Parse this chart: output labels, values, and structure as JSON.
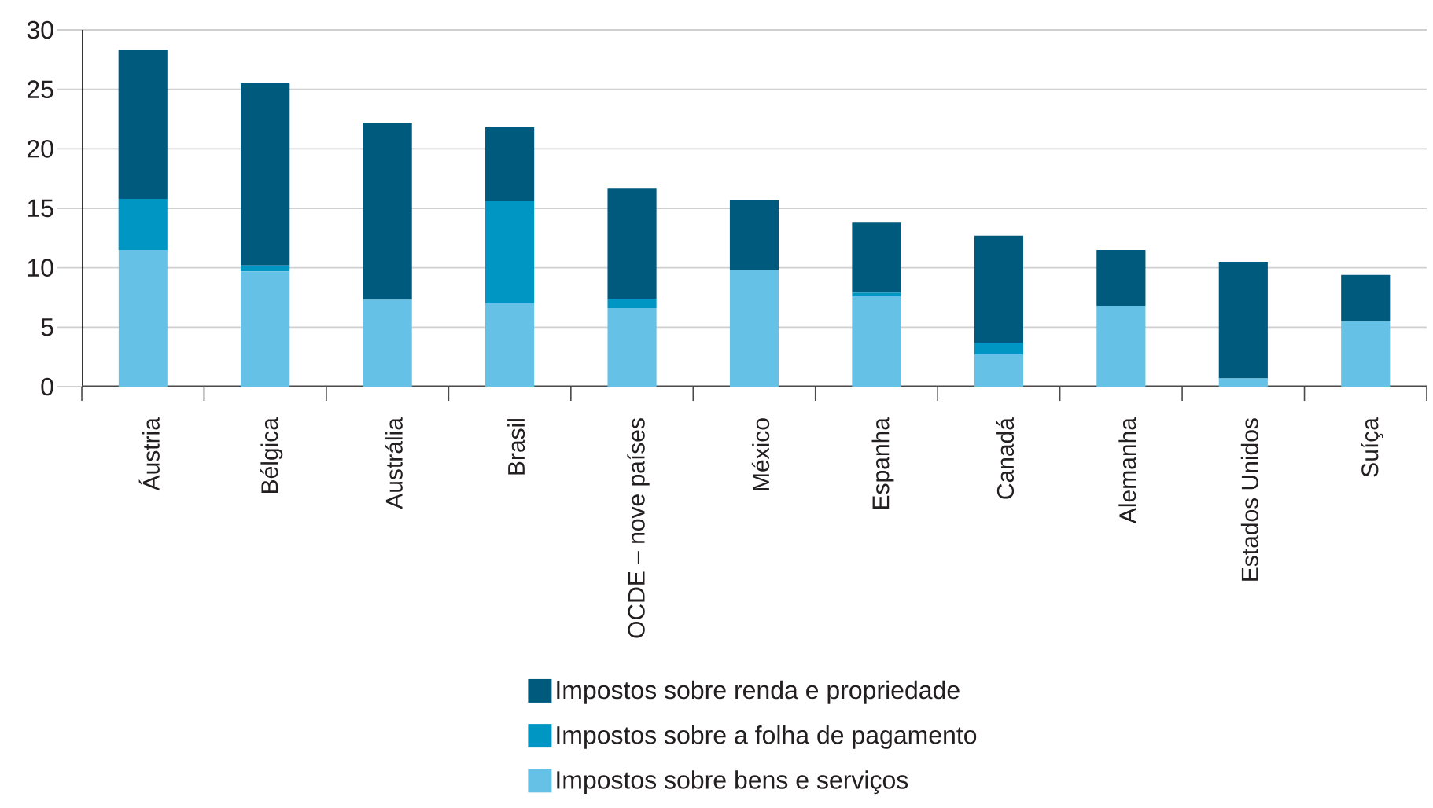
{
  "chart_data": {
    "type": "bar",
    "stacked": true,
    "categories": [
      "Áustria",
      "Bélgica",
      "Austrália",
      "Brasil",
      "OCDE – nove países",
      "México",
      "Espanha",
      "Canadá",
      "Alemanha",
      "Estados Unidos",
      "Suíça"
    ],
    "series": [
      {
        "name": "Impostos sobre bens e serviços",
        "color": "#66c1e6",
        "values": [
          11.5,
          9.7,
          7.3,
          7.0,
          6.6,
          9.8,
          7.6,
          2.7,
          6.8,
          0.7,
          5.5
        ]
      },
      {
        "name": "Impostos sobre a folha de pagamento",
        "color": "#0096c3",
        "values": [
          4.3,
          0.5,
          0,
          8.6,
          0.8,
          0,
          0.3,
          1.0,
          0,
          0,
          0
        ]
      },
      {
        "name": "Impostos sobre renda e propriedade",
        "color": "#005a7e",
        "values": [
          12.5,
          15.3,
          14.9,
          6.2,
          9.3,
          5.9,
          5.9,
          9.0,
          4.7,
          9.8,
          3.9
        ]
      }
    ],
    "ylim": [
      0,
      30
    ],
    "yticks": [
      0,
      5,
      10,
      15,
      20,
      25,
      30
    ],
    "grid": "y",
    "legend": "bottom"
  }
}
